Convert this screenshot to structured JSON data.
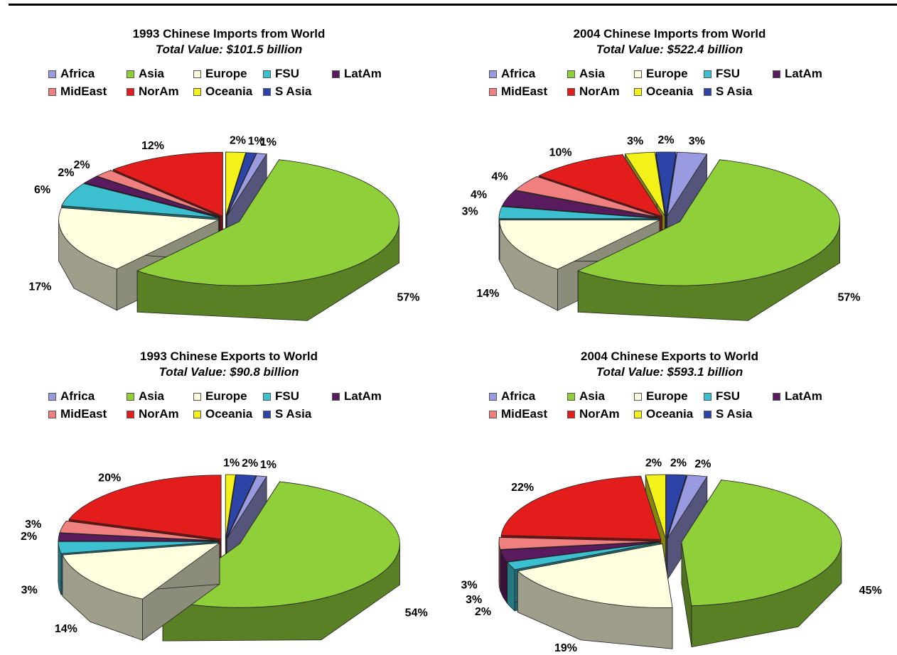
{
  "colors": {
    "Africa": "#9a9ae0",
    "Asia": "#8fcf3a",
    "Europe": "#ffffdf",
    "FSU": "#3cc0cf",
    "LatAm": "#5a1a5e",
    "MidEast": "#f08080",
    "NorAm": "#e31c1c",
    "Oceania": "#f2f21a",
    "S Asia": "#2c44a8"
  },
  "chart_data": [
    {
      "type": "pie",
      "title": "1993 Chinese Imports from World",
      "subtitle": "Total Value:  $101.5 billion",
      "legend": [
        "Africa",
        "Asia",
        "Europe",
        "FSU",
        "LatAm",
        "MidEast",
        "NorAm",
        "Oceania",
        "S Asia"
      ],
      "slices": [
        {
          "name": "Asia",
          "value": 57,
          "label": "57%"
        },
        {
          "name": "Europe",
          "value": 17,
          "label": "17%"
        },
        {
          "name": "FSU",
          "value": 6,
          "label": "6%"
        },
        {
          "name": "LatAm",
          "value": 2,
          "label": "2%"
        },
        {
          "name": "MidEast",
          "value": 2,
          "label": "2%"
        },
        {
          "name": "NorAm",
          "value": 12,
          "label": "12%"
        },
        {
          "name": "Oceania",
          "value": 2,
          "label": "2%"
        },
        {
          "name": "S Asia",
          "value": 1,
          "label": "1%"
        },
        {
          "name": "Africa",
          "value": 1,
          "label": "1%"
        }
      ]
    },
    {
      "type": "pie",
      "title": "2004 Chinese Imports from World",
      "subtitle": "Total Value:  $522.4 billion",
      "legend": [
        "Africa",
        "Asia",
        "Europe",
        "FSU",
        "LatAm",
        "MidEast",
        "NorAm",
        "Oceania",
        "S Asia"
      ],
      "slices": [
        {
          "name": "Asia",
          "value": 57,
          "label": "57%"
        },
        {
          "name": "Europe",
          "value": 14,
          "label": "14%"
        },
        {
          "name": "FSU",
          "value": 3,
          "label": "3%"
        },
        {
          "name": "LatAm",
          "value": 4,
          "label": "4%"
        },
        {
          "name": "MidEast",
          "value": 4,
          "label": "4%"
        },
        {
          "name": "NorAm",
          "value": 10,
          "label": "10%"
        },
        {
          "name": "Oceania",
          "value": 3,
          "label": "3%"
        },
        {
          "name": "S Asia",
          "value": 2,
          "label": "2%"
        },
        {
          "name": "Africa",
          "value": 3,
          "label": "3%"
        }
      ]
    },
    {
      "type": "pie",
      "title": "1993 Chinese Exports to World",
      "subtitle": "Total Value:  $90.8 billion",
      "legend": [
        "Africa",
        "Asia",
        "Europe",
        "FSU",
        "LatAm",
        "MidEast",
        "NorAm",
        "Oceania",
        "S Asia"
      ],
      "slices": [
        {
          "name": "Asia",
          "value": 54,
          "label": "54%"
        },
        {
          "name": "Europe",
          "value": 14,
          "label": "14%"
        },
        {
          "name": "FSU",
          "value": 3,
          "label": "3%"
        },
        {
          "name": "LatAm",
          "value": 2,
          "label": "2%"
        },
        {
          "name": "MidEast",
          "value": 3,
          "label": "3%"
        },
        {
          "name": "NorAm",
          "value": 20,
          "label": "20%"
        },
        {
          "name": "Oceania",
          "value": 1,
          "label": "1%"
        },
        {
          "name": "S Asia",
          "value": 2,
          "label": "2%"
        },
        {
          "name": "Africa",
          "value": 1,
          "label": "1%"
        }
      ]
    },
    {
      "type": "pie",
      "title": "2004 Chinese Exports to World",
      "subtitle": "Total Value:  $593.1 billion",
      "legend": [
        "Africa",
        "Asia",
        "Europe",
        "FSU",
        "LatAm",
        "MidEast",
        "NorAm",
        "Oceania",
        "S Asia"
      ],
      "slices": [
        {
          "name": "Asia",
          "value": 45,
          "label": "45%"
        },
        {
          "name": "Europe",
          "value": 19,
          "label": "19%"
        },
        {
          "name": "FSU",
          "value": 2,
          "label": "2%"
        },
        {
          "name": "LatAm",
          "value": 3,
          "label": "3%"
        },
        {
          "name": "MidEast",
          "value": 3,
          "label": "3%"
        },
        {
          "name": "NorAm",
          "value": 22,
          "label": "22%"
        },
        {
          "name": "Oceania",
          "value": 2,
          "label": "2%"
        },
        {
          "name": "S Asia",
          "value": 2,
          "label": "2%"
        },
        {
          "name": "Africa",
          "value": 2,
          "label": "2%"
        }
      ]
    }
  ]
}
